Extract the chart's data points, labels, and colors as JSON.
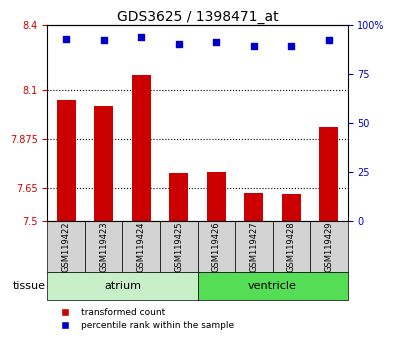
{
  "title": "GDS3625 / 1398471_at",
  "samples": [
    "GSM119422",
    "GSM119423",
    "GSM119424",
    "GSM119425",
    "GSM119426",
    "GSM119427",
    "GSM119428",
    "GSM119429"
  ],
  "red_values": [
    8.055,
    8.03,
    8.17,
    7.72,
    7.725,
    7.63,
    7.625,
    7.93
  ],
  "blue_values": [
    93,
    92,
    94,
    90,
    91,
    89,
    89,
    92
  ],
  "ylim_left": [
    7.5,
    8.4
  ],
  "ylim_right": [
    0,
    100
  ],
  "yticks_left": [
    7.5,
    7.65,
    7.875,
    8.1,
    8.4
  ],
  "yticks_right": [
    0,
    25,
    50,
    75,
    100
  ],
  "ytick_labels_left": [
    "7.5",
    "7.65",
    "7.875",
    "8.1",
    "8.4"
  ],
  "ytick_labels_right": [
    "0",
    "25",
    "50",
    "75",
    "100%"
  ],
  "grid_lines": [
    7.65,
    7.875,
    8.1
  ],
  "tissue_groups": [
    {
      "label": "atrium",
      "start": 0,
      "end": 3,
      "color": "#90EE90"
    },
    {
      "label": "ventricle",
      "start": 4,
      "end": 7,
      "color": "#00CC44"
    }
  ],
  "bar_color": "#CC0000",
  "dot_color": "#0000CC",
  "bar_bottom": 7.5,
  "tissue_label": "tissue",
  "legend_red": "transformed count",
  "legend_blue": "percentile rank within the sample",
  "bg_color": "#FFFFFF",
  "plot_bg": "#FFFFFF",
  "xlabel_color_left": "#CC0000",
  "xlabel_color_right": "#0000CC",
  "title_color": "#000000"
}
